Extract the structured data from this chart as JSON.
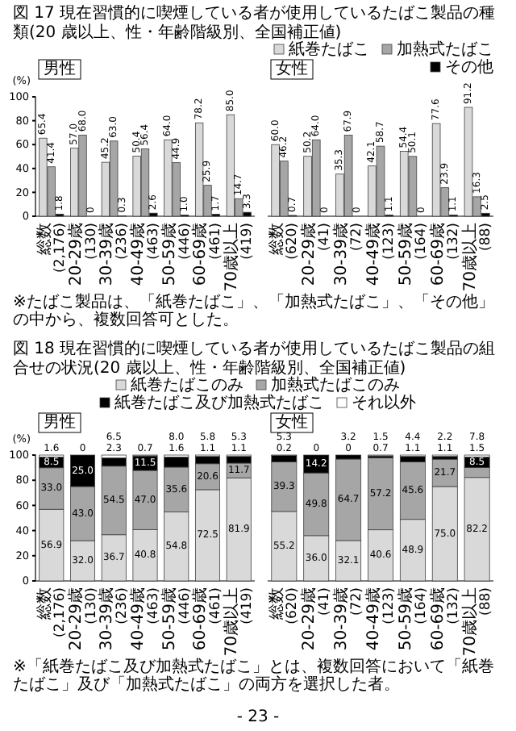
{
  "chart_data": [
    {
      "type": "bar",
      "title": "図 17 現在習慣的に喫煙している者が使用しているたばこ製品の種類(20 歳以上、性・年齢階級別、全国補正値)",
      "subtitle": "男性",
      "ylabel": "(%)",
      "categories": [
        "総数\n(2,176)",
        "20-29歳\n(130)",
        "30-39歳\n(236)",
        "40-49歳\n(463)",
        "50-59歳\n(446)",
        "60-69歳\n(461)",
        "70歳以上\n(419)"
      ],
      "ylim": [
        0,
        100
      ],
      "yticks": [
        0,
        20,
        40,
        60,
        80,
        100
      ],
      "legend": false,
      "annotations": [
        "※たばこ製品は、「紙巻たばこ」、「加熱式たばこ」、「その他」の中から、複数回答可とした。"
      ],
      "series": [
        {
          "color": "#d9d9d9",
          "values": [
            65.4,
            57.0,
            45.2,
            50.4,
            64.0,
            78.2,
            85.0
          ],
          "value_labels": [
            "65.4",
            "57.0",
            "45.2",
            "50.4",
            "64.0",
            "78.2",
            "85.0"
          ]
        },
        {
          "color": "#a6a6a6",
          "values": [
            41.4,
            68.0,
            63.0,
            56.4,
            44.9,
            25.9,
            14.7
          ],
          "value_labels": [
            "41.4",
            "68.0",
            "63.0",
            "56.4",
            "44.9",
            "25.9",
            "14.7"
          ]
        },
        {
          "color": "#000000",
          "values": [
            1.8,
            0,
            0.3,
            2.6,
            1.0,
            1.7,
            3.3
          ],
          "value_labels": [
            "1.8",
            "0",
            "0.3",
            "2.6",
            "1.0",
            "1.7",
            "3.3"
          ]
        }
      ]
    },
    {
      "type": "bar",
      "subtitle": "女性",
      "categories": [
        "総数\n(620)",
        "20-29歳\n(41)",
        "30-39歳\n(72)",
        "40-49歳\n(123)",
        "50-59歳\n(164)",
        "60-69歳\n(132)",
        "70歳以上\n(88)"
      ],
      "ylim": [
        0,
        100
      ],
      "tick_labels": "x",
      "legend": "top right",
      "series": [
        {
          "name": "紙巻たばこ",
          "color": "#d9d9d9",
          "values": [
            60.0,
            50.2,
            35.3,
            42.1,
            54.4,
            77.6,
            91.2
          ],
          "value_labels": [
            "60.0",
            "50.2",
            "35.3",
            "42.1",
            "54.4",
            "77.6",
            "91.2"
          ]
        },
        {
          "name": "加熱式たばこ",
          "color": "#a6a6a6",
          "values": [
            46.2,
            64.0,
            67.9,
            58.7,
            50.1,
            23.9,
            16.3
          ],
          "value_labels": [
            "46.2",
            "64.0",
            "67.9",
            "58.7",
            "50.1",
            "23.9",
            "16.3"
          ]
        },
        {
          "name": "その他",
          "color": "#000000",
          "values": [
            0.7,
            0,
            0,
            1.1,
            0,
            1.1,
            2.5
          ],
          "value_labels": [
            "0.7",
            "0",
            "0",
            "1.1",
            "0",
            "1.1",
            "2.5"
          ]
        }
      ]
    },
    {
      "type": "bar",
      "stacked": true,
      "title": "図 18 現在習慣的に喫煙している者が使用しているたばこ製品の組合せの状況(20 歳以上、性・年齢階級別、全国補正値)",
      "subtitle": "男性",
      "ylabel": "(%)",
      "categories": [
        "総数\n(2,176)",
        "20-29歳\n(130)",
        "30-39歳\n(236)",
        "40-49歳\n(463)",
        "50-59歳\n(446)",
        "60-69歳\n(461)",
        "70歳以上\n(419)"
      ],
      "ylim": [
        0,
        100
      ],
      "yticks": [
        0,
        20,
        40,
        60,
        80,
        100
      ],
      "legend": "top",
      "annotations": [
        "※「紙巻たばこ及び加熱式たばこ」とは、複数回答において「紙巻たばこ」及び「加熱式たばこ」の両方を選択した者。"
      ],
      "series": [
        {
          "name": "紙巻たばこのみ",
          "color": "#d9d9d9",
          "values": [
            56.9,
            32.0,
            36.7,
            40.8,
            54.8,
            72.5,
            81.9
          ],
          "value_labels": [
            "56.9",
            "32.0",
            "36.7",
            "40.8",
            "54.8",
            "72.5",
            "81.9"
          ]
        },
        {
          "name": "加熱式たばこのみ",
          "color": "#a6a6a6",
          "values": [
            33.0,
            43.0,
            54.5,
            47.0,
            35.6,
            20.6,
            11.7
          ],
          "value_labels": [
            "33.0",
            "43.0",
            "54.5",
            "47.0",
            "35.6",
            "20.6",
            "11.7"
          ]
        },
        {
          "name": "紙巻たばこ及び加熱式たばこ",
          "color": "#000000",
          "values": [
            8.5,
            25.0,
            6.5,
            11.5,
            8.0,
            5.8,
            5.3
          ],
          "value_labels": [
            "8.5",
            "25.0",
            "6.5",
            "11.5",
            "8.0",
            "5.8",
            "5.3"
          ]
        },
        {
          "name": "それ以外",
          "color": "#ffffff",
          "values": [
            1.6,
            0,
            2.3,
            0.7,
            1.6,
            1.1,
            1.1
          ],
          "value_labels": [
            "1.6",
            "0",
            "2.3",
            "0.7",
            "1.6",
            "1.1",
            "1.1"
          ]
        }
      ]
    },
    {
      "type": "bar",
      "stacked": true,
      "subtitle": "女性",
      "categories": [
        "総数\n(620)",
        "20-29歳\n(41)",
        "30-39歳\n(72)",
        "40-49歳\n(123)",
        "50-59歳\n(164)",
        "60-69歳\n(132)",
        "70歳以上\n(88)"
      ],
      "ylim": [
        0,
        100
      ],
      "tick_labels": "x",
      "legend": false,
      "annotations": [
        "- 23 -"
      ],
      "series": [
        {
          "color": "#d9d9d9",
          "values": [
            55.2,
            36.0,
            32.1,
            40.6,
            48.9,
            75.0,
            82.2
          ],
          "value_labels": [
            "55.2",
            "36.0",
            "32.1",
            "40.6",
            "48.9",
            "75.0",
            "82.2"
          ]
        },
        {
          "color": "#a6a6a6",
          "values": [
            39.3,
            49.8,
            64.7,
            57.2,
            45.6,
            21.7,
            7.8
          ],
          "value_labels": [
            "39.3",
            "49.8",
            "64.7",
            "57.2",
            "45.6",
            "21.7",
            "7.8"
          ]
        },
        {
          "color": "#000000",
          "values": [
            5.3,
            14.2,
            3.2,
            1.5,
            4.4,
            2.2,
            8.5
          ],
          "value_labels": [
            "5.3",
            "14.2",
            "3.2",
            "1.5",
            "4.4",
            "2.2",
            "8.5"
          ]
        },
        {
          "color": "#ffffff",
          "values": [
            0.2,
            0,
            0,
            0.7,
            1.1,
            1.1,
            1.5
          ],
          "value_labels": [
            "0.2",
            "0",
            "0",
            "0.7",
            "1.1",
            "1.1",
            "1.5"
          ]
        }
      ]
    }
  ]
}
